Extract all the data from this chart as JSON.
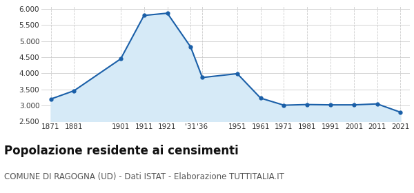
{
  "years": [
    1871,
    1881,
    1901,
    1911,
    1921,
    1931,
    1936,
    1951,
    1961,
    1971,
    1981,
    1991,
    2001,
    2011,
    2021
  ],
  "population": [
    3200,
    3460,
    4450,
    5800,
    5870,
    4820,
    3870,
    3990,
    3230,
    3010,
    3030,
    3020,
    3020,
    3050,
    2790
  ],
  "x_labels": [
    "1871",
    "1881",
    "1901",
    "1911",
    "1921",
    "'31",
    "'36",
    "1951",
    "1961",
    "1971",
    "1981",
    "1991",
    "2001",
    "2011",
    "2021"
  ],
  "line_color": "#1a5fa8",
  "fill_color": "#d6eaf7",
  "marker_color": "#1a5fa8",
  "background_color": "#ffffff",
  "grid_color": "#cccccc",
  "ylim": [
    2500,
    6100
  ],
  "yticks": [
    2500,
    3000,
    3500,
    4000,
    4500,
    5000,
    5500,
    6000
  ],
  "title": "Popolazione residente ai censimenti",
  "subtitle": "COMUNE DI RAGOGNA (UD) - Dati ISTAT - Elaborazione TUTTITALIA.IT",
  "title_fontsize": 12,
  "subtitle_fontsize": 8.5
}
